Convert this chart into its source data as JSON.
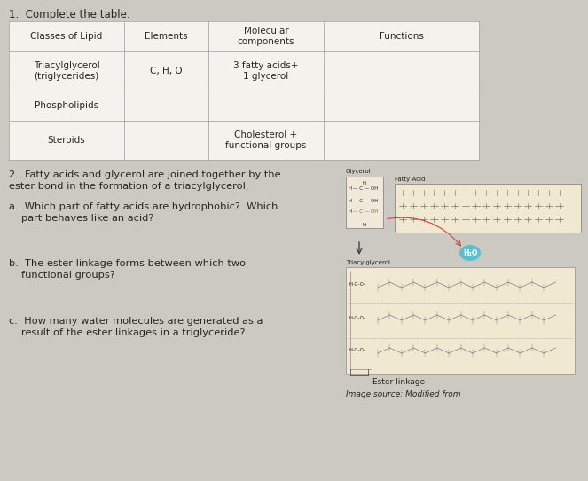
{
  "background_color": "#ccc8c2",
  "title1": "1.  Complete the table.",
  "table_headers": [
    "Classes of Lipid",
    "Elements",
    "Molecular\ncomponents",
    "Functions"
  ],
  "table_rows": [
    [
      "Triacylglycerol\n(triglycerides)",
      "C, H, O",
      "3 fatty acids+\n1 glycerol",
      ""
    ],
    [
      "Phospholipids",
      "",
      "",
      ""
    ],
    [
      "Steroids",
      "",
      "Cholesterol +\nfunctional groups",
      ""
    ]
  ],
  "section2_line1": "2.  Fatty acids and glycerol are joined together by the",
  "section2_line2": "ester bond in the formation of a triacylglycerol.",
  "qa": [
    [
      "a.",
      "Which part of fatty acids are hydrophobic?  Which\n     part behaves like an acid?"
    ],
    [
      "b.",
      "The ester linkage forms between which two\n     functional groups?"
    ],
    [
      "c.",
      "How many water molecules are generated as a\n     result of the ester linkages in a triglyceride?"
    ]
  ],
  "image_caption": "Ester linkage",
  "image_source": "Image source: Modified from",
  "text_color": "#2a2520",
  "table_border_color": "#aaaaaa",
  "glycerol_box_color": "#f0e8d8",
  "fa_box_color": "#f0e8d0",
  "tg_box_color": "#f0e8d0",
  "h2o_color": "#5bbfcc",
  "arrow_color": "#cc4444"
}
